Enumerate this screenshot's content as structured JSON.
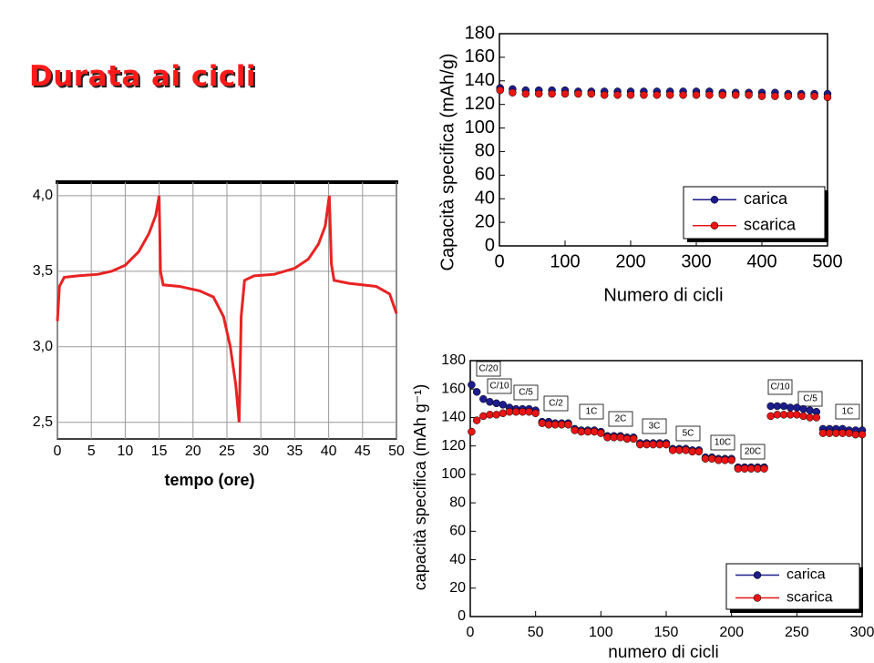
{
  "title": "Durata ai cicli",
  "chart_data": [
    {
      "type": "line",
      "xlabel": "tempo (ore)",
      "color": "#e82323",
      "grid": true,
      "xlim": [
        0,
        50
      ],
      "xticks": [
        0,
        5,
        10,
        15,
        20,
        25,
        30,
        35,
        40,
        45,
        50
      ],
      "ylim": [
        2.39,
        4.09
      ],
      "yticks": [
        {
          "value": 2.5,
          "label": "2,5"
        },
        {
          "value": 3.0,
          "label": "3,0"
        },
        {
          "value": 3.5,
          "label": "3,5"
        },
        {
          "value": 4.0,
          "label": "4,0"
        }
      ],
      "x": [
        0,
        0.3,
        1,
        3,
        6,
        8,
        10,
        12,
        13.5,
        14.5,
        15,
        15.2,
        15.6,
        18,
        21,
        23,
        24.5,
        25.5,
        26.3,
        26.8,
        27.1,
        27.6,
        29,
        32,
        35,
        37,
        38.5,
        39.5,
        40.1,
        40.4,
        40.8,
        43,
        47,
        49,
        50
      ],
      "values": [
        3.17,
        3.4,
        3.46,
        3.47,
        3.48,
        3.5,
        3.54,
        3.63,
        3.75,
        3.87,
        4.0,
        3.5,
        3.41,
        3.4,
        3.37,
        3.33,
        3.2,
        3.0,
        2.75,
        2.5,
        3.2,
        3.44,
        3.47,
        3.48,
        3.52,
        3.58,
        3.68,
        3.8,
        4.0,
        3.55,
        3.44,
        3.42,
        3.4,
        3.35,
        3.22
      ]
    },
    {
      "type": "scatter",
      "xlabel": "Numero di cicli",
      "ylabel": "Capacità specifica (mAh/g)",
      "legend": "lower right",
      "xlim": [
        0,
        500
      ],
      "xticks": [
        0,
        100,
        200,
        300,
        400,
        500
      ],
      "ylim": [
        0,
        180
      ],
      "yticks": [
        0,
        20,
        40,
        60,
        80,
        100,
        120,
        140,
        160,
        180
      ],
      "x": [
        1,
        20,
        40,
        60,
        80,
        100,
        120,
        140,
        160,
        180,
        200,
        220,
        240,
        260,
        280,
        300,
        320,
        340,
        360,
        380,
        400,
        420,
        440,
        460,
        480,
        500
      ],
      "series": [
        {
          "name": "carica",
          "color": "#1c1c8c",
          "values": [
            134,
            133,
            132,
            132,
            132,
            132,
            131,
            131,
            131,
            131,
            131,
            131,
            131,
            131,
            131,
            131,
            131,
            130,
            130,
            130,
            130,
            130,
            129,
            129,
            129,
            129
          ]
        },
        {
          "name": "scarica",
          "color": "#e81515",
          "values": [
            132,
            130,
            129,
            129,
            129,
            129,
            129,
            129,
            128,
            128,
            128,
            128,
            128,
            128,
            128,
            128,
            128,
            128,
            128,
            128,
            127,
            127,
            127,
            127,
            127,
            126
          ]
        }
      ]
    },
    {
      "type": "scatter",
      "xlabel": "numero di cicli",
      "ylabel": "capacità specifica (mAh g⁻¹)",
      "legend": "lower right",
      "xlim": [
        0,
        300
      ],
      "xticks": [
        0,
        50,
        100,
        150,
        200,
        250,
        300
      ],
      "ylim": [
        0,
        180
      ],
      "yticks": [
        0,
        20,
        40,
        60,
        80,
        100,
        120,
        140,
        160,
        180
      ],
      "annotations": [
        "C/20",
        "C/10",
        "C/5",
        "C/2",
        "1C",
        "2C",
        "3C",
        "5C",
        "10C",
        "20C",
        "C/10",
        "C/5",
        "1C"
      ],
      "x": [
        1,
        5,
        10,
        15,
        20,
        25,
        30,
        35,
        40,
        45,
        50,
        55,
        60,
        65,
        70,
        75,
        80,
        85,
        90,
        95,
        100,
        105,
        110,
        115,
        120,
        125,
        130,
        135,
        140,
        145,
        150,
        155,
        160,
        165,
        170,
        175,
        180,
        185,
        190,
        195,
        200,
        205,
        210,
        215,
        220,
        225,
        230,
        235,
        240,
        245,
        250,
        255,
        260,
        265,
        270,
        275,
        280,
        285,
        290,
        295,
        300
      ],
      "series": [
        {
          "name": "carica",
          "color": "#1c1c8c",
          "values": [
            163,
            158,
            153,
            151,
            150,
            149,
            147,
            146,
            146,
            146,
            145,
            137,
            137,
            136,
            136,
            136,
            132,
            131,
            131,
            131,
            130,
            127,
            127,
            127,
            126,
            126,
            122,
            122,
            122,
            122,
            122,
            118,
            118,
            118,
            117,
            117,
            112,
            112,
            111,
            111,
            111,
            105,
            105,
            105,
            105,
            105,
            148,
            148,
            148,
            147,
            147,
            146,
            145,
            144,
            132,
            132,
            132,
            132,
            131,
            131,
            131
          ]
        },
        {
          "name": "scarica",
          "color": "#e81515",
          "values": [
            130,
            138,
            141,
            142,
            142,
            143,
            144,
            144,
            144,
            144,
            143,
            136,
            135,
            135,
            135,
            135,
            131,
            130,
            130,
            130,
            129,
            126,
            126,
            126,
            125,
            125,
            121,
            121,
            121,
            121,
            121,
            117,
            117,
            117,
            116,
            116,
            111,
            111,
            110,
            110,
            110,
            104,
            104,
            104,
            104,
            104,
            141,
            142,
            142,
            142,
            142,
            141,
            140,
            140,
            129,
            129,
            129,
            129,
            129,
            128,
            128
          ]
        }
      ]
    }
  ]
}
